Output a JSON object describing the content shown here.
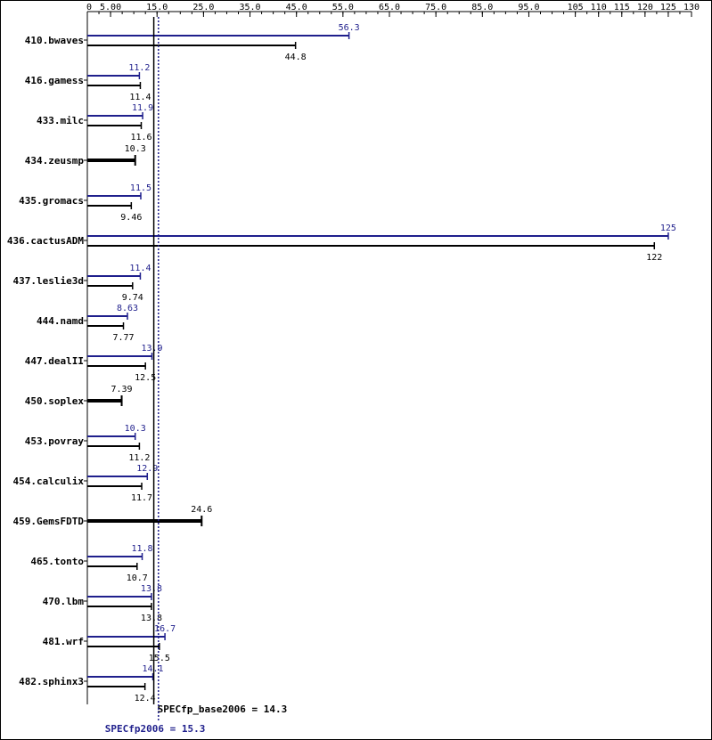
{
  "chart_data": {
    "type": "bar",
    "orientation": "horizontal",
    "axis": {
      "min": 0,
      "max": 130,
      "ticks": [
        0,
        5,
        15,
        25,
        35,
        45,
        55,
        65,
        75,
        85,
        95,
        105,
        110,
        115,
        120,
        125,
        130
      ],
      "tick_labels": [
        "0",
        "5.00",
        "15.0",
        "25.0",
        "35.0",
        "45.0",
        "55.0",
        "65.0",
        "75.0",
        "85.0",
        "95.0",
        "105",
        "110",
        "115",
        "120",
        "125",
        "130"
      ],
      "position": "top"
    },
    "categories": [
      "410.bwaves",
      "416.gamess",
      "433.milc",
      "434.zeusmp",
      "435.gromacs",
      "436.cactusADM",
      "437.leslie3d",
      "444.namd",
      "447.dealII",
      "450.soplex",
      "453.povray",
      "454.calculix",
      "459.GemsFDTD",
      "465.tonto",
      "470.lbm",
      "481.wrf",
      "482.sphinx3"
    ],
    "series": [
      {
        "values": [
          56.3,
          11.2,
          11.9,
          null,
          11.5,
          125,
          11.4,
          8.63,
          13.9,
          null,
          10.3,
          12.9,
          null,
          11.8,
          13.8,
          16.7,
          14.1
        ],
        "labels": [
          "56.3",
          "11.2",
          "11.9",
          "",
          "11.5",
          "125",
          "11.4",
          "8.63",
          "13.9",
          "",
          "10.3",
          "12.9",
          "",
          "11.8",
          "13.8",
          "16.7",
          "14.1"
        ],
        "color": "#1f1f8c"
      },
      {
        "values": [
          44.8,
          11.4,
          11.6,
          10.3,
          9.46,
          122,
          9.74,
          7.77,
          12.5,
          7.39,
          11.2,
          11.7,
          24.6,
          10.7,
          13.8,
          15.5,
          12.4
        ],
        "labels": [
          "44.8",
          "11.4",
          "11.6",
          "10.3",
          "9.46",
          "122",
          "9.74",
          "7.77",
          "12.5",
          "7.39",
          "11.2",
          "11.7",
          "24.6",
          "10.7",
          "13.8",
          "15.5",
          "12.4"
        ],
        "color": "#000000"
      }
    ],
    "base_only": [
      false,
      false,
      false,
      true,
      false,
      false,
      false,
      false,
      false,
      true,
      false,
      false,
      true,
      false,
      false,
      false,
      false
    ],
    "reference_lines": [
      {
        "value": 14.3,
        "label": "SPECfp_base2006 = 14.3",
        "style": "solid",
        "color": "#000000"
      },
      {
        "value": 15.3,
        "label": "SPECfp2006 = 15.3",
        "style": "dotted",
        "color": "#1f1f8c"
      }
    ],
    "grid": false,
    "legend": "none"
  }
}
